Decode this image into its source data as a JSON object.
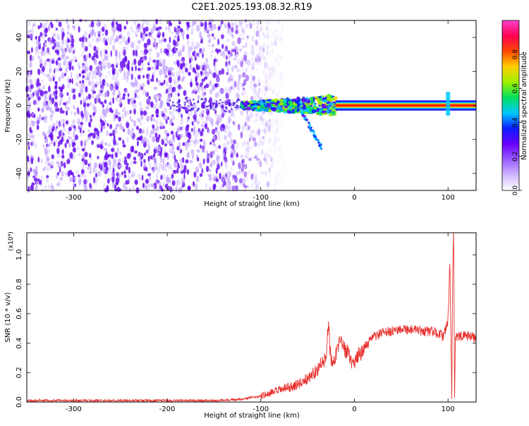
{
  "title": "C2E1.2025.193.08.32.R19",
  "colors": {
    "snr_line": "#e8322f",
    "wave_dots": "#8a3cf0",
    "frame": "#000000"
  },
  "chart_data": [
    {
      "type": "heatmap",
      "title": "C2E1.2025.193.08.32.R19",
      "xlabel": "Height of straight line (km)",
      "ylabel": "Frequency (Hz)",
      "xlim": [
        -350,
        130
      ],
      "ylim": [
        -50,
        50
      ],
      "x_ticks": [
        -300,
        -200,
        -100,
        0,
        100
      ],
      "x_tick_labels": [
        "-300",
        "-200",
        "-100",
        "0",
        "100"
      ],
      "y_ticks": [
        -40,
        -20,
        0,
        20,
        40
      ],
      "y_tick_labels": [
        "-40",
        "-20",
        "0",
        "20",
        "40"
      ],
      "colorbar": {
        "label": "Normalized spectral amplitude",
        "range": [
          0,
          1
        ],
        "ticks": [
          0.0,
          0.2,
          0.4,
          0.6,
          0.8
        ],
        "tick_labels": [
          "0.0",
          "0.2",
          "0.4",
          "0.6",
          "0.8"
        ],
        "colormap": [
          "#ffffff",
          "#cfb8ff",
          "#9a5cff",
          "#6a00ff",
          "#0a1aff",
          "#00c8ff",
          "#00e060",
          "#9ef000",
          "#ffd000",
          "#ff4a00",
          "#ff0050",
          "#ff40d0"
        ]
      },
      "features": {
        "noise_band_x": [
          -350,
          -100
        ],
        "noise_freq_range": [
          -50,
          50
        ],
        "transition_x": [
          -120,
          -20
        ],
        "tail_end": {
          "x": -35,
          "freq": -25
        },
        "carrier_x": [
          -20,
          130
        ],
        "carrier_freq": 0,
        "carrier_halfwidth_hz": 3,
        "spike_x": 100
      }
    },
    {
      "type": "line",
      "xlabel": "Height of straight line (km)",
      "ylabel": "SNR (10 * v/v)",
      "y_multiplier": "(x10⁴)",
      "xlim": [
        -350,
        130
      ],
      "ylim": [
        0,
        1.15
      ],
      "x_ticks": [
        -300,
        -200,
        -100,
        0,
        100
      ],
      "x_tick_labels": [
        "-300",
        "-200",
        "-100",
        "0",
        "100"
      ],
      "y_ticks": [
        0.0,
        0.2,
        0.4,
        0.6,
        0.8,
        1.0
      ],
      "y_tick_labels": [
        "0.0",
        "0.2",
        "0.4",
        "0.6",
        "0.8",
        "1.0"
      ],
      "series": [
        {
          "x": [
            -350,
            -300,
            -250,
            -200,
            -150,
            -120,
            -100,
            -80,
            -60,
            -50,
            -40,
            -35,
            -30,
            -28,
            -25,
            -20,
            -15,
            -10,
            -5,
            0,
            5,
            10,
            15,
            20,
            30,
            40,
            50,
            60,
            70,
            80,
            90,
            95,
            100,
            102,
            104,
            105,
            106,
            107,
            108,
            110,
            120,
            130
          ],
          "y": [
            0.01,
            0.01,
            0.01,
            0.01,
            0.01,
            0.02,
            0.04,
            0.08,
            0.12,
            0.16,
            0.22,
            0.26,
            0.3,
            0.55,
            0.28,
            0.32,
            0.4,
            0.36,
            0.3,
            0.25,
            0.33,
            0.36,
            0.4,
            0.44,
            0.47,
            0.48,
            0.5,
            0.49,
            0.48,
            0.48,
            0.47,
            0.44,
            0.55,
            0.95,
            0.02,
            0.9,
            1.2,
            0.05,
            0.45,
            0.44,
            0.45,
            0.44
          ]
        }
      ]
    }
  ]
}
